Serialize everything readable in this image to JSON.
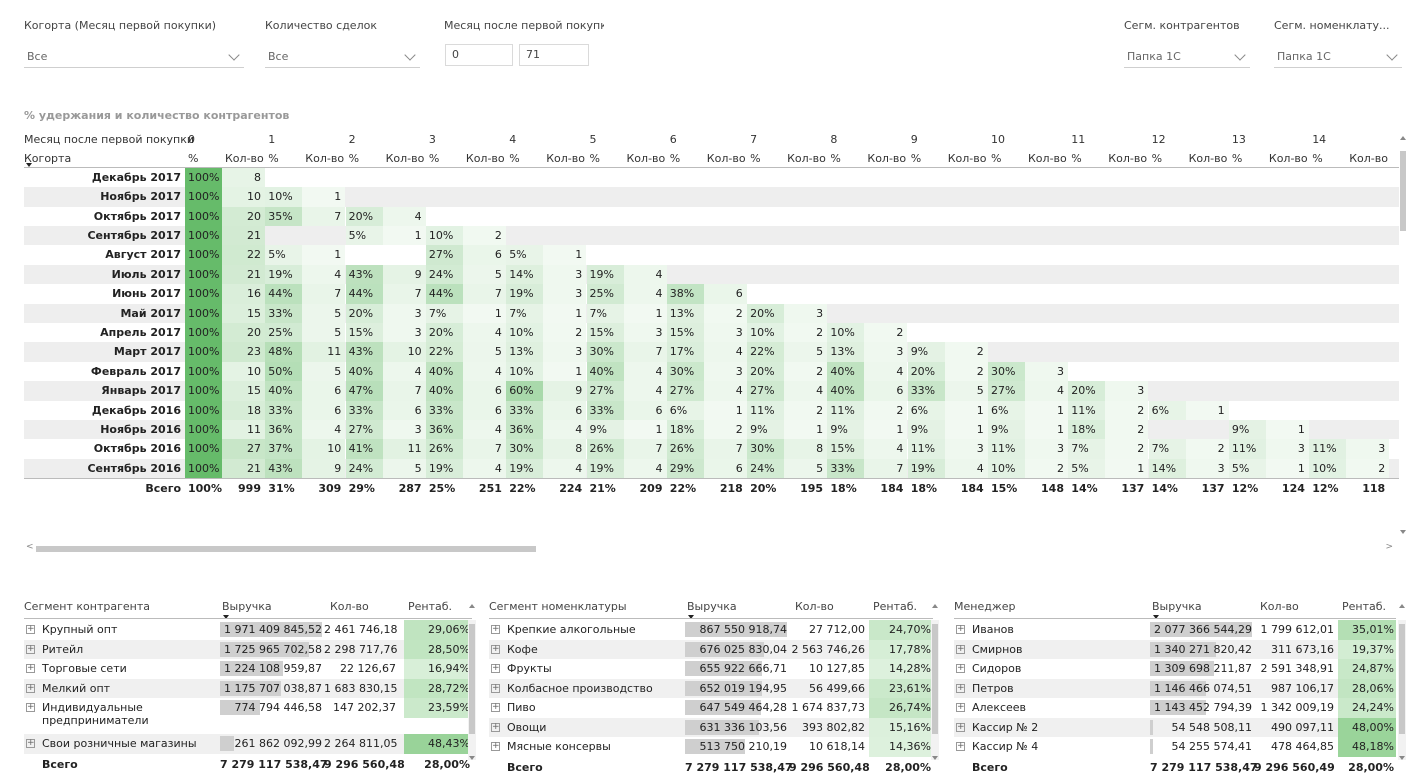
{
  "filters": [
    {
      "title": "Когорта (Месяц первой покупки)",
      "value": "Все"
    },
    {
      "title": "Количество сделок",
      "value": "Все"
    },
    {
      "title": "Месяц после первой покупки",
      "range_from": "0",
      "range_to": "71"
    },
    {
      "title": "Сегм. контрагентов",
      "value": "Папка 1С"
    },
    {
      "title": "Сегм. номенклату...",
      "value": "Папка 1С"
    }
  ],
  "matrix": {
    "title": "% удержания и количество контрагентов",
    "column_header": "Месяц после первой покупки",
    "row_header": "Когорта",
    "months": [
      "0",
      "1",
      "2",
      "3",
      "4",
      "5",
      "6",
      "7",
      "8",
      "9",
      "10",
      "11",
      "12",
      "13",
      "14"
    ],
    "pct_label": "%",
    "cnt_label": "Кол-во",
    "rows": [
      {
        "cohort": "Декабрь 2017",
        "cells": [
          [
            "100%",
            "8"
          ]
        ]
      },
      {
        "cohort": "Ноябрь 2017",
        "cells": [
          [
            "100%",
            "10"
          ],
          [
            "10%",
            "1"
          ]
        ]
      },
      {
        "cohort": "Октябрь 2017",
        "cells": [
          [
            "100%",
            "20"
          ],
          [
            "35%",
            "7"
          ],
          [
            "20%",
            "4"
          ]
        ]
      },
      {
        "cohort": "Сентябрь 2017",
        "cells": [
          [
            "100%",
            "21"
          ],
          [
            "",
            ""
          ],
          [
            "5%",
            "1"
          ],
          [
            "10%",
            "2"
          ]
        ]
      },
      {
        "cohort": "Август 2017",
        "cells": [
          [
            "100%",
            "22"
          ],
          [
            "5%",
            "1"
          ],
          [
            "",
            ""
          ],
          [
            "27%",
            "6"
          ],
          [
            "5%",
            "1"
          ]
        ]
      },
      {
        "cohort": "Июль 2017",
        "cells": [
          [
            "100%",
            "21"
          ],
          [
            "19%",
            "4"
          ],
          [
            "43%",
            "9"
          ],
          [
            "24%",
            "5"
          ],
          [
            "14%",
            "3"
          ],
          [
            "19%",
            "4"
          ]
        ]
      },
      {
        "cohort": "Июнь 2017",
        "cells": [
          [
            "100%",
            "16"
          ],
          [
            "44%",
            "7"
          ],
          [
            "44%",
            "7"
          ],
          [
            "44%",
            "7"
          ],
          [
            "19%",
            "3"
          ],
          [
            "25%",
            "4"
          ],
          [
            "38%",
            "6"
          ]
        ]
      },
      {
        "cohort": "Май 2017",
        "cells": [
          [
            "100%",
            "15"
          ],
          [
            "33%",
            "5"
          ],
          [
            "20%",
            "3"
          ],
          [
            "7%",
            "1"
          ],
          [
            "7%",
            "1"
          ],
          [
            "7%",
            "1"
          ],
          [
            "13%",
            "2"
          ],
          [
            "20%",
            "3"
          ]
        ]
      },
      {
        "cohort": "Апрель 2017",
        "cells": [
          [
            "100%",
            "20"
          ],
          [
            "25%",
            "5"
          ],
          [
            "15%",
            "3"
          ],
          [
            "20%",
            "4"
          ],
          [
            "10%",
            "2"
          ],
          [
            "15%",
            "3"
          ],
          [
            "15%",
            "3"
          ],
          [
            "10%",
            "2"
          ],
          [
            "10%",
            "2"
          ]
        ]
      },
      {
        "cohort": "Март 2017",
        "cells": [
          [
            "100%",
            "23"
          ],
          [
            "48%",
            "11"
          ],
          [
            "43%",
            "10"
          ],
          [
            "22%",
            "5"
          ],
          [
            "13%",
            "3"
          ],
          [
            "30%",
            "7"
          ],
          [
            "17%",
            "4"
          ],
          [
            "22%",
            "5"
          ],
          [
            "13%",
            "3"
          ],
          [
            "9%",
            "2"
          ]
        ]
      },
      {
        "cohort": "Февраль 2017",
        "cells": [
          [
            "100%",
            "10"
          ],
          [
            "50%",
            "5"
          ],
          [
            "40%",
            "4"
          ],
          [
            "40%",
            "4"
          ],
          [
            "10%",
            "1"
          ],
          [
            "40%",
            "4"
          ],
          [
            "30%",
            "3"
          ],
          [
            "20%",
            "2"
          ],
          [
            "40%",
            "4"
          ],
          [
            "20%",
            "2"
          ],
          [
            "30%",
            "3"
          ]
        ]
      },
      {
        "cohort": "Январь 2017",
        "cells": [
          [
            "100%",
            "15"
          ],
          [
            "40%",
            "6"
          ],
          [
            "47%",
            "7"
          ],
          [
            "40%",
            "6"
          ],
          [
            "60%",
            "9"
          ],
          [
            "27%",
            "4"
          ],
          [
            "27%",
            "4"
          ],
          [
            "27%",
            "4"
          ],
          [
            "40%",
            "6"
          ],
          [
            "33%",
            "5"
          ],
          [
            "27%",
            "4"
          ],
          [
            "20%",
            "3"
          ]
        ]
      },
      {
        "cohort": "Декабрь 2016",
        "cells": [
          [
            "100%",
            "18"
          ],
          [
            "33%",
            "6"
          ],
          [
            "33%",
            "6"
          ],
          [
            "33%",
            "6"
          ],
          [
            "33%",
            "6"
          ],
          [
            "33%",
            "6"
          ],
          [
            "6%",
            "1"
          ],
          [
            "11%",
            "2"
          ],
          [
            "11%",
            "2"
          ],
          [
            "6%",
            "1"
          ],
          [
            "6%",
            "1"
          ],
          [
            "11%",
            "2"
          ],
          [
            "6%",
            "1"
          ]
        ]
      },
      {
        "cohort": "Ноябрь 2016",
        "cells": [
          [
            "100%",
            "11"
          ],
          [
            "36%",
            "4"
          ],
          [
            "27%",
            "3"
          ],
          [
            "36%",
            "4"
          ],
          [
            "36%",
            "4"
          ],
          [
            "9%",
            "1"
          ],
          [
            "18%",
            "2"
          ],
          [
            "9%",
            "1"
          ],
          [
            "9%",
            "1"
          ],
          [
            "9%",
            "1"
          ],
          [
            "9%",
            "1"
          ],
          [
            "18%",
            "2"
          ],
          [
            "",
            ""
          ],
          [
            "9%",
            "1"
          ]
        ]
      },
      {
        "cohort": "Октябрь 2016",
        "cells": [
          [
            "100%",
            "27"
          ],
          [
            "37%",
            "10"
          ],
          [
            "41%",
            "11"
          ],
          [
            "26%",
            "7"
          ],
          [
            "30%",
            "8"
          ],
          [
            "26%",
            "7"
          ],
          [
            "26%",
            "7"
          ],
          [
            "30%",
            "8"
          ],
          [
            "15%",
            "4"
          ],
          [
            "11%",
            "3"
          ],
          [
            "11%",
            "3"
          ],
          [
            "7%",
            "2"
          ],
          [
            "7%",
            "2"
          ],
          [
            "11%",
            "3"
          ],
          [
            "11%",
            "3"
          ]
        ]
      },
      {
        "cohort": "Сентябрь 2016",
        "cells": [
          [
            "100%",
            "21"
          ],
          [
            "43%",
            "9"
          ],
          [
            "24%",
            "5"
          ],
          [
            "19%",
            "4"
          ],
          [
            "19%",
            "4"
          ],
          [
            "19%",
            "4"
          ],
          [
            "29%",
            "6"
          ],
          [
            "24%",
            "5"
          ],
          [
            "33%",
            "7"
          ],
          [
            "19%",
            "4"
          ],
          [
            "10%",
            "2"
          ],
          [
            "5%",
            "1"
          ],
          [
            "14%",
            "3"
          ],
          [
            "5%",
            "1"
          ],
          [
            "10%",
            "2"
          ]
        ]
      }
    ],
    "total": {
      "cohort": "Всего",
      "cells": [
        [
          "100%",
          "999"
        ],
        [
          "31%",
          "309"
        ],
        [
          "29%",
          "287"
        ],
        [
          "25%",
          "251"
        ],
        [
          "22%",
          "224"
        ],
        [
          "21%",
          "209"
        ],
        [
          "22%",
          "218"
        ],
        [
          "20%",
          "195"
        ],
        [
          "18%",
          "184"
        ],
        [
          "18%",
          "184"
        ],
        [
          "15%",
          "148"
        ],
        [
          "14%",
          "137"
        ],
        [
          "14%",
          "137"
        ],
        [
          "12%",
          "124"
        ],
        [
          "12%",
          "118"
        ]
      ]
    }
  },
  "tables": [
    {
      "headers": [
        "Сегмент контрагента",
        "Выручка",
        "Кол-во",
        "Рентаб."
      ],
      "rows": [
        {
          "name": "Крупный опт",
          "revenue": "1 971 409 845,52",
          "qty": "2 461 746,18",
          "margin": "29,06%",
          "rev_share": 1.0,
          "margin_pct": 29.06
        },
        {
          "name": "Ритейл",
          "revenue": "1 725 965 702,58",
          "qty": "2 298 717,76",
          "margin": "28,50%",
          "rev_share": 0.875,
          "margin_pct": 28.5
        },
        {
          "name": "Торговые сети",
          "revenue": "1 224 108 959,87",
          "qty": "22 126,67",
          "margin": "16,94%",
          "rev_share": 0.621,
          "margin_pct": 16.94
        },
        {
          "name": "Мелкий опт",
          "revenue": "1 175 707 038,87",
          "qty": "1 683 830,15",
          "margin": "28,72%",
          "rev_share": 0.596,
          "margin_pct": 28.72
        },
        {
          "name": "Индивидуальные предприниматели",
          "revenue": "774 794 446,58",
          "qty": "147 202,37",
          "margin": "23,59%",
          "rev_share": 0.393,
          "margin_pct": 23.59,
          "tall": true
        },
        {
          "name": "Свои розничные магазины",
          "revenue": "261 862 092,99",
          "qty": "2 264 811,05",
          "margin": "48,43%",
          "rev_share": 0.133,
          "margin_pct": 48.43
        }
      ],
      "total": {
        "name": "Всего",
        "revenue": "7 279 117 538,47",
        "qty": "9 296 560,48",
        "margin": "28,00%"
      }
    },
    {
      "headers": [
        "Сегмент номенклатуры",
        "Выручка",
        "Кол-во",
        "Рентаб."
      ],
      "rows": [
        {
          "name": "Крепкие алкогольные напитки",
          "revenue": "867 550 918,74",
          "qty": "27 712,00",
          "margin": "24,70%",
          "rev_share": 1.0,
          "margin_pct": 24.7
        },
        {
          "name": "Кофе",
          "revenue": "676 025 830,04",
          "qty": "2 563 746,26",
          "margin": "17,78%",
          "rev_share": 0.779,
          "margin_pct": 17.78
        },
        {
          "name": "Фрукты",
          "revenue": "655 922 666,71",
          "qty": "10 127,85",
          "margin": "14,28%",
          "rev_share": 0.756,
          "margin_pct": 14.28
        },
        {
          "name": "Колбасное производство",
          "revenue": "652 019 194,95",
          "qty": "56 499,66",
          "margin": "23,61%",
          "rev_share": 0.752,
          "margin_pct": 23.61
        },
        {
          "name": "Пиво",
          "revenue": "647 549 464,28",
          "qty": "1 674 837,73",
          "margin": "26,74%",
          "rev_share": 0.746,
          "margin_pct": 26.74
        },
        {
          "name": "Овощи",
          "revenue": "631 336 103,56",
          "qty": "393 802,82",
          "margin": "15,16%",
          "rev_share": 0.728,
          "margin_pct": 15.16
        },
        {
          "name": "Мясные консервы",
          "revenue": "513 750 210,19",
          "qty": "10 618,14",
          "margin": "14,36%",
          "rev_share": 0.592,
          "margin_pct": 14.36
        }
      ],
      "total": {
        "name": "Всего",
        "revenue": "7 279 117 538,47",
        "qty": "9 296 560,48",
        "margin": "28,00%"
      }
    },
    {
      "headers": [
        "Менеджер",
        "Выручка",
        "Кол-во",
        "Рентаб."
      ],
      "rows": [
        {
          "name": "Иванов",
          "revenue": "2 077 366 544,29",
          "qty": "1 799 612,01",
          "margin": "35,01%",
          "rev_share": 1.0,
          "margin_pct": 35.01
        },
        {
          "name": "Смирнов",
          "revenue": "1 340 271 820,42",
          "qty": "311 673,16",
          "margin": "19,37%",
          "rev_share": 0.645,
          "margin_pct": 19.37
        },
        {
          "name": "Сидоров",
          "revenue": "1 309 698 211,87",
          "qty": "2 591 348,91",
          "margin": "24,87%",
          "rev_share": 0.63,
          "margin_pct": 24.87
        },
        {
          "name": "Петров",
          "revenue": "1 146 466 074,51",
          "qty": "987 106,17",
          "margin": "28,06%",
          "rev_share": 0.552,
          "margin_pct": 28.06
        },
        {
          "name": "Алексеев",
          "revenue": "1 143 452 794,39",
          "qty": "1 342 009,19",
          "margin": "24,24%",
          "rev_share": 0.55,
          "margin_pct": 24.24
        },
        {
          "name": "Кассир № 2",
          "revenue": "54 548 508,11",
          "qty": "490 097,11",
          "margin": "48,00%",
          "rev_share": 0.026,
          "margin_pct": 48.0
        },
        {
          "name": "Кассир № 4",
          "revenue": "54 255 574,41",
          "qty": "478 464,85",
          "margin": "48,18%",
          "rev_share": 0.026,
          "margin_pct": 48.18
        }
      ],
      "total": {
        "name": "Всего",
        "revenue": "7 279 117 538,47",
        "qty": "9 296 560,49",
        "margin": "28,00%"
      }
    }
  ],
  "colors": {
    "green_max": "#66bb6a",
    "green_min": "#eef7ee",
    "bar_gray": "#cfcfcf"
  }
}
